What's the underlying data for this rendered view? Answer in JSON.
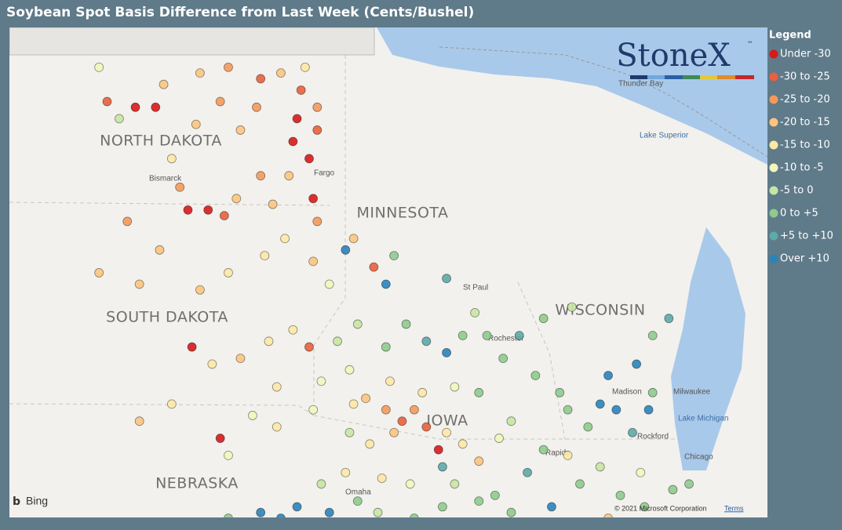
{
  "header": {
    "title": "Soybean Spot Basis Difference from Last Week (Cents/Bushel)"
  },
  "legend": {
    "title": "Legend",
    "items": [
      {
        "label": "Under -30",
        "max": -30,
        "color": "#d7191c"
      },
      {
        "label": "-30 to -25",
        "min": -30,
        "max": -25,
        "color": "#e8603c"
      },
      {
        "label": "-25 to -20",
        "min": -25,
        "max": -20,
        "color": "#f39a5b"
      },
      {
        "label": "-20 to -15",
        "min": -20,
        "max": -15,
        "color": "#fbc57f"
      },
      {
        "label": "-15 to -10",
        "min": -15,
        "max": -10,
        "color": "#fde8a6"
      },
      {
        "label": "-10 to -5",
        "min": -10,
        "max": -5,
        "color": "#f1f6bd"
      },
      {
        "label": "-5 to 0",
        "min": -5,
        "max": 0,
        "color": "#c7e6a3"
      },
      {
        "label": "0 to +5",
        "min": 0,
        "max": 5,
        "color": "#8fcb8c"
      },
      {
        "label": "+5 to +10",
        "min": 5,
        "max": 10,
        "color": "#5ea9a9"
      },
      {
        "label": "Over +10",
        "min": 10,
        "color": "#2b83ba"
      }
    ]
  },
  "logo": {
    "name": "StoneX",
    "mark": "™"
  },
  "map_labels": {
    "states": [
      "NORTH DAKOTA",
      "SOUTH DAKOTA",
      "MINNESOTA",
      "WISCONSIN",
      "NEBRASKA",
      "IOWA"
    ],
    "cities": [
      "Thunder Bay",
      "Bismarck",
      "Fargo",
      "St Paul",
      "Rochester",
      "Madison",
      "Milwaukee",
      "Rockford",
      "Chicago",
      "Rapids",
      "Omaha"
    ],
    "water": [
      "Lake Superior",
      "Lake Michigan"
    ]
  },
  "attribution": {
    "provider": "Bing",
    "copyright": "© 2021 Microsoft Corporation",
    "terms": "Terms"
  },
  "points": [
    [
      -99.5,
      48.8,
      -18
    ],
    [
      -98.8,
      48.9,
      -22
    ],
    [
      -98.0,
      48.7,
      -26
    ],
    [
      -97.5,
      48.8,
      -17
    ],
    [
      -96.9,
      48.9,
      -12
    ],
    [
      -97.0,
      48.5,
      -26
    ],
    [
      -96.6,
      48.2,
      -24
    ],
    [
      -97.1,
      48.0,
      -32
    ],
    [
      -96.6,
      47.8,
      -28
    ],
    [
      -97.2,
      47.6,
      -34
    ],
    [
      -96.8,
      47.3,
      -31
    ],
    [
      -97.3,
      47.0,
      -18
    ],
    [
      -96.7,
      46.6,
      -33
    ],
    [
      -96.6,
      46.2,
      -22
    ],
    [
      -98.1,
      48.2,
      -24
    ],
    [
      -99.0,
      48.3,
      -21
    ],
    [
      -99.6,
      47.9,
      -18
    ],
    [
      -100.2,
      47.3,
      -14
    ],
    [
      -101.1,
      48.2,
      -33
    ],
    [
      -100.6,
      48.2,
      -34
    ],
    [
      -101.8,
      48.3,
      -26
    ],
    [
      -102.0,
      48.9,
      -8
    ],
    [
      -101.5,
      48.0,
      -3
    ],
    [
      -100.4,
      48.6,
      -17
    ],
    [
      -98.5,
      47.8,
      -20
    ],
    [
      -98.0,
      47.0,
      -22
    ],
    [
      -97.7,
      46.5,
      -18
    ],
    [
      -98.9,
      46.3,
      -28
    ],
    [
      -99.3,
      46.4,
      -36
    ],
    [
      -99.8,
      46.4,
      -33
    ],
    [
      -98.6,
      46.6,
      -16
    ],
    [
      -100.0,
      46.8,
      -22
    ],
    [
      -101.3,
      46.2,
      -24
    ],
    [
      -100.5,
      45.7,
      -20
    ],
    [
      -102.0,
      45.3,
      -18
    ],
    [
      -101.0,
      45.1,
      -19
    ],
    [
      -99.5,
      45.0,
      -18
    ],
    [
      -98.8,
      45.3,
      -15
    ],
    [
      -97.9,
      45.6,
      -14
    ],
    [
      -97.4,
      45.9,
      -12
    ],
    [
      -96.7,
      45.5,
      -16
    ],
    [
      -96.3,
      45.1,
      -10
    ],
    [
      -95.7,
      45.9,
      -20
    ],
    [
      -95.2,
      45.4,
      -27
    ],
    [
      -94.7,
      45.6,
      4
    ],
    [
      -94.9,
      45.1,
      12
    ],
    [
      -95.9,
      45.7,
      11
    ],
    [
      -99.7,
      44.0,
      -33
    ],
    [
      -99.2,
      43.7,
      -14
    ],
    [
      -98.5,
      43.8,
      -17
    ],
    [
      -97.8,
      44.1,
      -12
    ],
    [
      -97.2,
      44.3,
      -13
    ],
    [
      -96.8,
      44.0,
      -30
    ],
    [
      -96.5,
      43.4,
      -8
    ],
    [
      -97.6,
      43.3,
      -11
    ],
    [
      -98.2,
      42.8,
      -6
    ],
    [
      -99.0,
      42.4,
      -32
    ],
    [
      -100.2,
      43.0,
      -12
    ],
    [
      -101.0,
      42.7,
      -16
    ],
    [
      -98.8,
      42.1,
      -10
    ],
    [
      -97.6,
      42.6,
      -11
    ],
    [
      -96.7,
      42.9,
      -7
    ],
    [
      -96.1,
      44.1,
      -3
    ],
    [
      -95.8,
      43.6,
      -8
    ],
    [
      -95.4,
      43.1,
      -18
    ],
    [
      -94.9,
      42.9,
      -25
    ],
    [
      -94.5,
      42.7,
      -27
    ],
    [
      -94.2,
      42.9,
      -23
    ],
    [
      -93.9,
      42.6,
      -26
    ],
    [
      -94.7,
      42.5,
      -18
    ],
    [
      -93.6,
      42.2,
      -32
    ],
    [
      -93.4,
      42.5,
      -14
    ],
    [
      -93.0,
      42.3,
      -12
    ],
    [
      -92.6,
      42.0,
      -17
    ],
    [
      -92.1,
      42.4,
      -8
    ],
    [
      -93.5,
      41.9,
      6
    ],
    [
      -95.3,
      42.3,
      -14
    ],
    [
      -95.8,
      42.5,
      -4
    ],
    [
      -95.9,
      41.8,
      -12
    ],
    [
      -95.0,
      41.7,
      -13
    ],
    [
      -94.3,
      41.6,
      -9
    ],
    [
      -93.2,
      41.6,
      -4
    ],
    [
      -92.2,
      41.4,
      3
    ],
    [
      -91.4,
      41.8,
      5
    ],
    [
      -91.8,
      42.7,
      -4
    ],
    [
      -92.6,
      43.2,
      2
    ],
    [
      -93.2,
      43.3,
      -8
    ],
    [
      -94.0,
      43.2,
      -12
    ],
    [
      -94.8,
      43.4,
      -15
    ],
    [
      -95.7,
      43.0,
      -14
    ],
    [
      -94.4,
      44.4,
      3
    ],
    [
      -93.9,
      44.1,
      6
    ],
    [
      -93.4,
      43.9,
      12
    ],
    [
      -94.9,
      44.0,
      2
    ],
    [
      -95.6,
      44.4,
      -3
    ],
    [
      -93.0,
      44.2,
      4
    ],
    [
      -92.4,
      44.2,
      2
    ],
    [
      -92.0,
      43.8,
      3
    ],
    [
      -91.6,
      44.2,
      6
    ],
    [
      -93.4,
      45.2,
      7
    ],
    [
      -92.7,
      44.6,
      -4
    ],
    [
      -91.0,
      44.5,
      4
    ],
    [
      -90.3,
      44.7,
      -2
    ],
    [
      -91.2,
      43.5,
      1
    ],
    [
      -90.6,
      43.2,
      2
    ],
    [
      -88.3,
      44.2,
      3
    ],
    [
      -87.9,
      44.5,
      5
    ],
    [
      -88.7,
      43.7,
      13
    ],
    [
      -89.4,
      43.5,
      14
    ],
    [
      -89.6,
      43.0,
      13
    ],
    [
      -89.2,
      42.9,
      12
    ],
    [
      -88.4,
      42.9,
      14
    ],
    [
      -88.8,
      42.5,
      6
    ],
    [
      -89.9,
      42.6,
      1
    ],
    [
      -90.4,
      42.1,
      -14
    ],
    [
      -89.6,
      41.9,
      -2
    ],
    [
      -90.1,
      41.6,
      3
    ],
    [
      -89.1,
      41.4,
      4
    ],
    [
      -88.5,
      41.2,
      2
    ],
    [
      -87.8,
      41.5,
      3
    ],
    [
      -88.9,
      40.9,
      6
    ],
    [
      -90.8,
      41.2,
      11
    ],
    [
      -91.5,
      40.9,
      13
    ],
    [
      -90.0,
      40.8,
      5
    ],
    [
      -87.6,
      40.9,
      4
    ],
    [
      -87.4,
      41.6,
      2
    ],
    [
      -88.6,
      41.8,
      -6
    ],
    [
      -86.9,
      40.9,
      3
    ],
    [
      -87.9,
      40.8,
      -33
    ],
    [
      -89.4,
      41.0,
      -18
    ],
    [
      -90.4,
      42.9,
      4
    ],
    [
      -91.0,
      42.2,
      3
    ],
    [
      -88.3,
      43.2,
      4
    ],
    [
      -98.0,
      41.1,
      12
    ],
    [
      -97.5,
      41.0,
      14
    ],
    [
      -97.1,
      41.2,
      11
    ],
    [
      -96.7,
      40.9,
      13
    ],
    [
      -96.3,
      41.1,
      12
    ],
    [
      -97.8,
      40.7,
      4
    ],
    [
      -98.8,
      41.0,
      3
    ],
    [
      -99.7,
      40.8,
      -8
    ],
    [
      -96.5,
      41.6,
      -5
    ],
    [
      -95.6,
      41.3,
      3
    ],
    [
      -95.1,
      41.1,
      -2
    ],
    [
      -94.2,
      41.0,
      2
    ],
    [
      -93.5,
      41.2,
      3
    ],
    [
      -92.6,
      41.3,
      4
    ],
    [
      -91.8,
      41.1,
      2
    ]
  ]
}
